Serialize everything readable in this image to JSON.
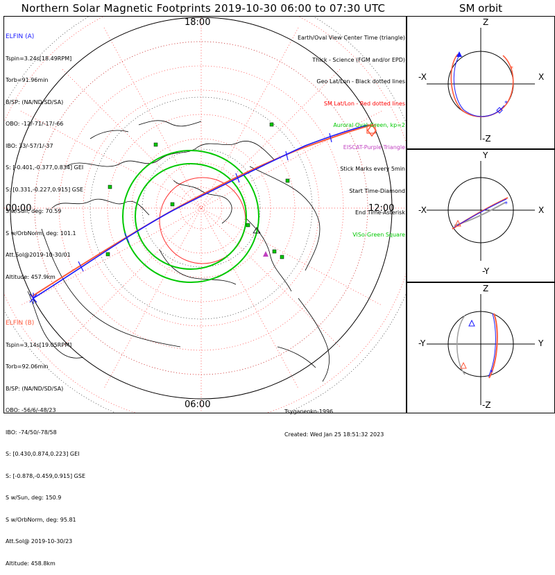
{
  "title": "Northern Solar Magnetic Footprints 2019-10-30 06:00 to 07:30 UTC",
  "orbit_title": "SM orbit",
  "hour_labels": {
    "top": "18:00",
    "left": "00:00",
    "right": "12:00",
    "bottom": "06:00"
  },
  "probe_a": {
    "name": "ELFIN (A)",
    "color": "#1a1aff",
    "lines": [
      "Tspin=3.24s[18.49RPM]",
      "Torb=91.96min",
      "B/SP: (NA/ND/SD/SA)",
      "OBO: -12/-71/-17/-66",
      "IBO: 33/-57/1/-37",
      "S: [-0.401,-0.377,0.834] GEI",
      "S: [0.331,-0.227,0.915] GSE",
      "S w/Sun, deg: 70.59",
      "S w/OrbNorm, deg: 101.1",
      "Att.Sol@2019-10-30/01",
      "Altitude: 457.9km"
    ]
  },
  "probe_b": {
    "name": "ELFIN (B)",
    "color": "#ff5a3c",
    "lines": [
      "Tspin=3.14s[19.05RPM]",
      "Torb=92.06min",
      "B/SP: (NA/ND/SD/SA)",
      "OBO: -56/6/-48/23",
      "IBO: -74/50/-78/58",
      "S: [0.430,0.874,0.223] GEI",
      "S: [-0.878,-0.459,0.915] GSE",
      "S w/Sun, deg: 150.9",
      "S w/OrbNorm, deg: 95.81",
      "Att.Sol@ 2019-10-30/23",
      "Altitude: 458.8km"
    ]
  },
  "legend": [
    {
      "text": "Earth/Oval View Center Time (triangle)",
      "color": "#000000"
    },
    {
      "text": "Thick - Science (FGM and/or EPD)",
      "color": "#000000"
    },
    {
      "text": "Geo Lat/Lon - Black dotted lines",
      "color": "#000000"
    },
    {
      "text": "SM Lat/Lon - Red dotted lines",
      "color": "#ff0000"
    },
    {
      "text": "Auroral Oval-Green, kp=2",
      "color": "#00c800"
    },
    {
      "text": "EISCAT-Purple Triangle",
      "color": "#c040c0"
    },
    {
      "text": "Stick Marks every 5min",
      "color": "#000000"
    },
    {
      "text": "Start Time-Diamond",
      "color": "#000000"
    },
    {
      "text": "End Time-Asterisk",
      "color": "#000000"
    },
    {
      "text": "ViSo-Green Square",
      "color": "#00c800"
    }
  ],
  "credits": {
    "model": "Tsyganenko-1996",
    "created": "Created: Wed Jan 25 18:51:32 2023"
  },
  "orbit_panels": [
    {
      "top": "Z",
      "bottom": "-Z",
      "left": "-X",
      "right": "X"
    },
    {
      "top": "Y",
      "bottom": "-Y",
      "left": "-X",
      "right": "X"
    },
    {
      "top": "Z",
      "bottom": "-Z",
      "left": "-Y",
      "right": "Y"
    }
  ],
  "colors": {
    "track_a": "#1a1aff",
    "track_b": "#ff5a3c",
    "oval": "#00c800",
    "sm_grid": "#ff3030",
    "geo_grid": "#000000",
    "eiscat": "#c040c0"
  }
}
